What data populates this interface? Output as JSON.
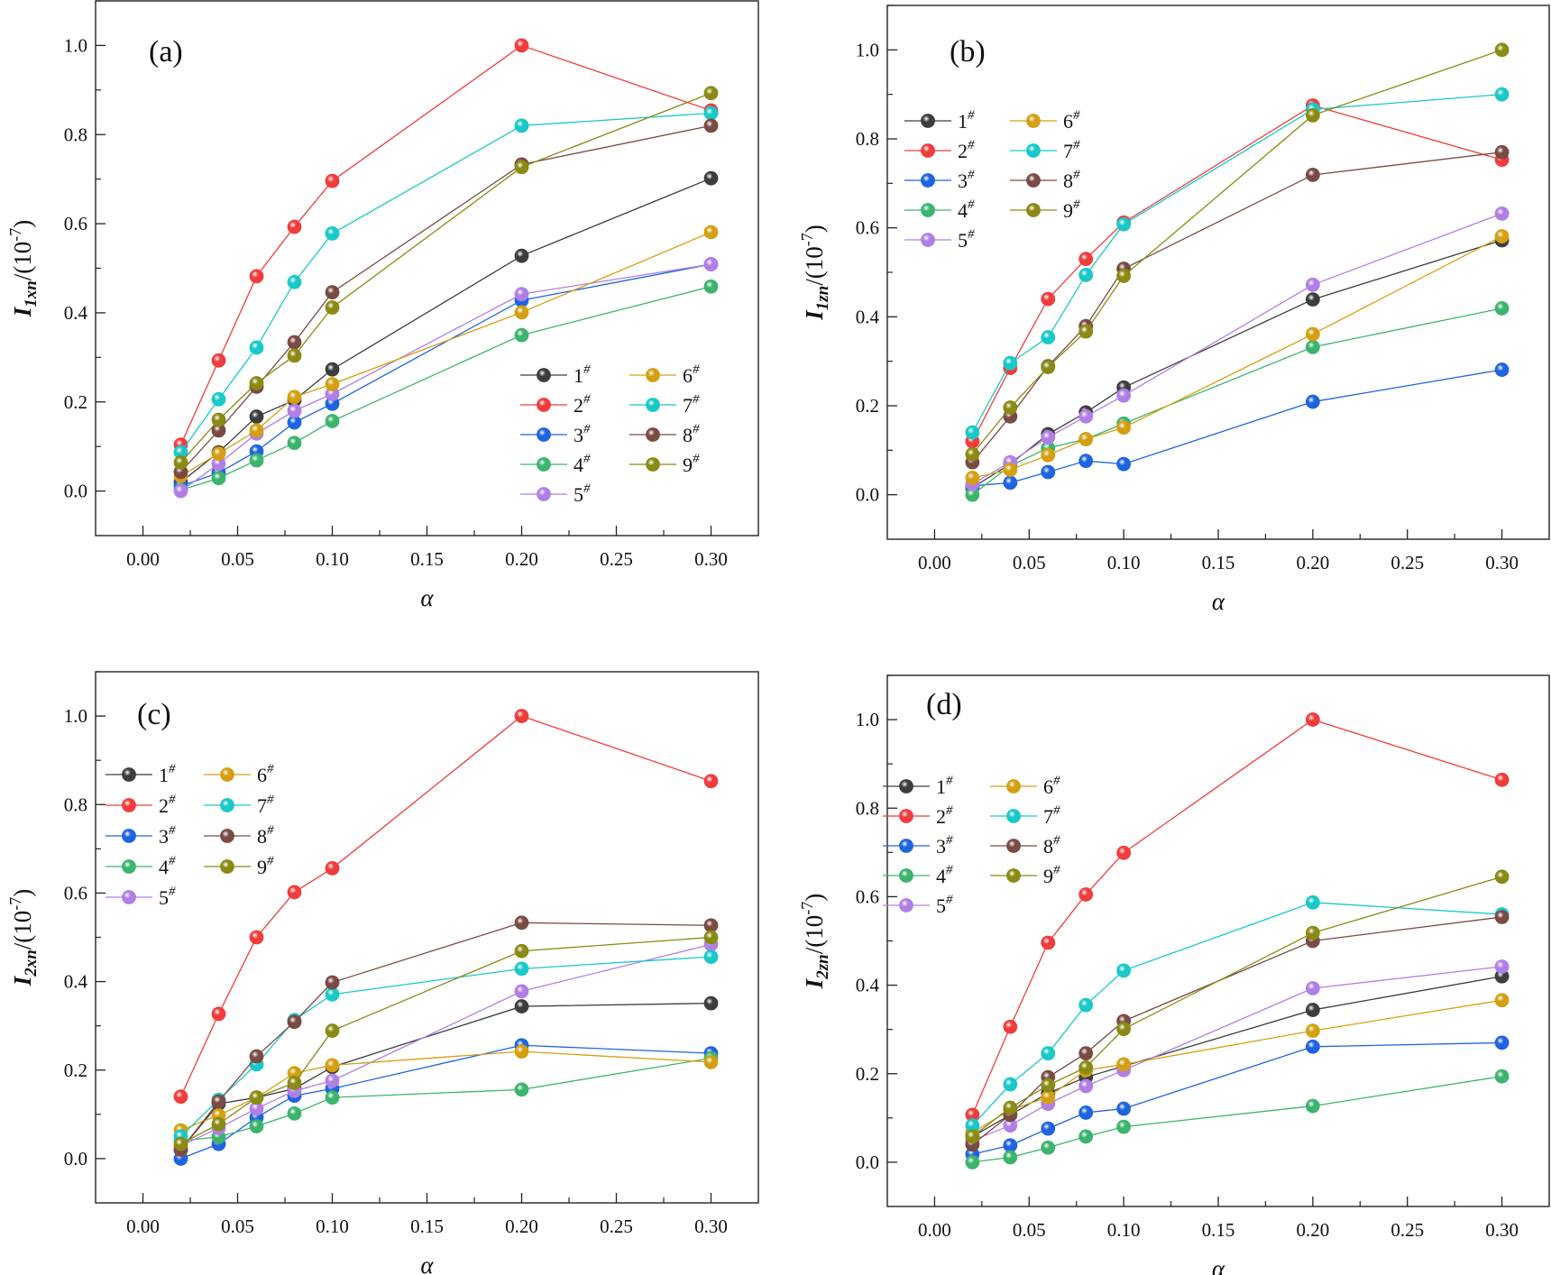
{
  "series_colors": {
    "1": "#3d3d3d",
    "2": "#f03c3c",
    "3": "#1e64e0",
    "4": "#3cb46e",
    "5": "#b07fe6",
    "6": "#d4a012",
    "7": "#19c8c8",
    "8": "#7a4a44",
    "9": "#8a8a14"
  },
  "chart_data": [
    {
      "type": "line",
      "panel_label": "(a)",
      "xlabel": "α",
      "ylabel": {
        "base": "I",
        "sub": "1xn",
        "rest": "/(10",
        "sup": "-7",
        "end": ")"
      },
      "xlim": [
        -0.025,
        0.325
      ],
      "ylim": [
        -0.1,
        1.1
      ],
      "xticks": [
        "0.00",
        "0.05",
        "0.10",
        "0.15",
        "0.20",
        "0.25",
        "0.30"
      ],
      "yticks": [
        "0.0",
        "0.2",
        "0.4",
        "0.6",
        "0.8",
        "1.0"
      ],
      "grid": false,
      "legend_placement": "bottom-right",
      "x": [
        0.02,
        0.04,
        0.06,
        0.08,
        0.1,
        0.2,
        0.3
      ],
      "series": [
        {
          "name": "1",
          "sup": "#",
          "values": [
            0.02,
            0.087,
            0.167,
            0.204,
            0.273,
            0.528,
            0.702
          ]
        },
        {
          "name": "2",
          "sup": "#",
          "values": [
            0.104,
            0.293,
            0.482,
            0.593,
            0.696,
            1.0,
            0.854
          ]
        },
        {
          "name": "3",
          "sup": "#",
          "values": [
            0.011,
            0.041,
            0.089,
            0.154,
            0.196,
            0.428,
            0.509
          ]
        },
        {
          "name": "4",
          "sup": "#",
          "values": [
            0.002,
            0.029,
            0.069,
            0.108,
            0.157,
            0.35,
            0.459
          ]
        },
        {
          "name": "5",
          "sup": "#",
          "values": [
            0.0,
            0.061,
            0.129,
            0.18,
            0.218,
            0.442,
            0.509
          ]
        },
        {
          "name": "6",
          "sup": "#",
          "values": [
            0.034,
            0.084,
            0.136,
            0.211,
            0.24,
            0.401,
            0.581
          ]
        },
        {
          "name": "7",
          "sup": "#",
          "values": [
            0.087,
            0.206,
            0.322,
            0.469,
            0.578,
            0.82,
            0.848
          ]
        },
        {
          "name": "8",
          "sup": "#",
          "values": [
            0.043,
            0.136,
            0.234,
            0.334,
            0.446,
            0.733,
            0.82
          ]
        },
        {
          "name": "9",
          "sup": "#",
          "values": [
            0.064,
            0.16,
            0.242,
            0.304,
            0.412,
            0.727,
            0.893
          ]
        }
      ]
    },
    {
      "type": "line",
      "panel_label": "(b)",
      "xlabel": "α",
      "ylabel": {
        "base": "I",
        "sub": "1zn",
        "rest": "/(10",
        "sup": "-7",
        "end": ")"
      },
      "xlim": [
        -0.025,
        0.325
      ],
      "ylim": [
        -0.1,
        1.1
      ],
      "xticks": [
        "0.00",
        "0.05",
        "0.10",
        "0.15",
        "0.20",
        "0.25",
        "0.30"
      ],
      "yticks": [
        "0.0",
        "0.2",
        "0.4",
        "0.6",
        "0.8",
        "1.0"
      ],
      "grid": false,
      "legend_placement": "top-left",
      "x": [
        0.02,
        0.04,
        0.06,
        0.08,
        0.1,
        0.2,
        0.3
      ],
      "series": [
        {
          "name": "1",
          "sup": "#",
          "values": [
            0.016,
            0.069,
            0.136,
            0.185,
            0.241,
            0.439,
            0.572
          ]
        },
        {
          "name": "2",
          "sup": "#",
          "values": [
            0.12,
            0.285,
            0.44,
            0.53,
            0.612,
            0.875,
            0.753
          ]
        },
        {
          "name": "3",
          "sup": "#",
          "values": [
            0.02,
            0.027,
            0.051,
            0.076,
            0.069,
            0.209,
            0.281
          ]
        },
        {
          "name": "4",
          "sup": "#",
          "values": [
            0.0,
            0.065,
            0.105,
            0.125,
            0.16,
            0.332,
            0.419
          ]
        },
        {
          "name": "5",
          "sup": "#",
          "values": [
            0.024,
            0.073,
            0.129,
            0.176,
            0.223,
            0.472,
            0.632
          ]
        },
        {
          "name": "6",
          "sup": "#",
          "values": [
            0.038,
            0.056,
            0.089,
            0.125,
            0.151,
            0.361,
            0.581
          ]
        },
        {
          "name": "7",
          "sup": "#",
          "values": [
            0.14,
            0.296,
            0.354,
            0.494,
            0.608,
            0.866,
            0.9
          ]
        },
        {
          "name": "8",
          "sup": "#",
          "values": [
            0.073,
            0.176,
            0.289,
            0.379,
            0.508,
            0.719,
            0.77
          ]
        },
        {
          "name": "9",
          "sup": "#",
          "values": [
            0.091,
            0.196,
            0.287,
            0.367,
            0.492,
            0.853,
            1.0
          ]
        }
      ]
    },
    {
      "type": "line",
      "panel_label": "(c)",
      "xlabel": "α",
      "ylabel": {
        "base": "I",
        "sub": "2xn",
        "rest": "/(10",
        "sup": "-7",
        "end": ")"
      },
      "xlim": [
        -0.025,
        0.325
      ],
      "ylim": [
        -0.1,
        1.1
      ],
      "xticks": [
        "0.00",
        "0.05",
        "0.10",
        "0.15",
        "0.20",
        "0.25",
        "0.30"
      ],
      "yticks": [
        "0.0",
        "0.2",
        "0.4",
        "0.6",
        "0.8",
        "1.0"
      ],
      "grid": false,
      "legend_placement": "top-left",
      "x": [
        0.02,
        0.04,
        0.06,
        0.08,
        0.1,
        0.2,
        0.3
      ],
      "series": [
        {
          "name": "1",
          "sup": "#",
          "values": [
            0.02,
            0.124,
            0.138,
            0.158,
            0.207,
            0.344,
            0.351
          ]
        },
        {
          "name": "2",
          "sup": "#",
          "values": [
            0.14,
            0.327,
            0.5,
            0.602,
            0.656,
            1.0,
            0.853
          ]
        },
        {
          "name": "3",
          "sup": "#",
          "values": [
            0.0,
            0.033,
            0.093,
            0.142,
            0.158,
            0.256,
            0.238
          ]
        },
        {
          "name": "4",
          "sup": "#",
          "values": [
            0.04,
            0.049,
            0.073,
            0.102,
            0.138,
            0.156,
            0.227
          ]
        },
        {
          "name": "5",
          "sup": "#",
          "values": [
            0.029,
            0.069,
            0.113,
            0.153,
            0.176,
            0.378,
            0.484
          ]
        },
        {
          "name": "6",
          "sup": "#",
          "values": [
            0.064,
            0.098,
            0.138,
            0.193,
            0.211,
            0.242,
            0.218
          ]
        },
        {
          "name": "7",
          "sup": "#",
          "values": [
            0.05,
            0.133,
            0.213,
            0.313,
            0.371,
            0.429,
            0.456
          ]
        },
        {
          "name": "8",
          "sup": "#",
          "values": [
            0.02,
            0.129,
            0.231,
            0.309,
            0.398,
            0.533,
            0.527
          ]
        },
        {
          "name": "9",
          "sup": "#",
          "values": [
            0.033,
            0.078,
            0.138,
            0.171,
            0.289,
            0.469,
            0.5
          ]
        }
      ]
    },
    {
      "type": "line",
      "panel_label": "(d)",
      "xlabel": "α",
      "ylabel": {
        "base": "I",
        "sub": "2zn",
        "rest": "/(10",
        "sup": "-7",
        "end": ")"
      },
      "xlim": [
        -0.025,
        0.325
      ],
      "ylim": [
        -0.1,
        1.1
      ],
      "xticks": [
        "0.00",
        "0.05",
        "0.10",
        "0.15",
        "0.20",
        "0.25",
        "0.30"
      ],
      "yticks": [
        "0.0",
        "0.2",
        "0.4",
        "0.6",
        "0.8",
        "1.0"
      ],
      "grid": false,
      "legend_placement": "top-left",
      "x": [
        0.02,
        0.04,
        0.06,
        0.08,
        0.1,
        0.2,
        0.3
      ],
      "series": [
        {
          "name": "1",
          "sup": "#",
          "values": [
            0.058,
            0.107,
            0.156,
            0.192,
            0.217,
            0.344,
            0.42
          ]
        },
        {
          "name": "2",
          "sup": "#",
          "values": [
            0.107,
            0.306,
            0.496,
            0.605,
            0.699,
            1.0,
            0.864
          ]
        },
        {
          "name": "3",
          "sup": "#",
          "values": [
            0.018,
            0.038,
            0.076,
            0.112,
            0.121,
            0.261,
            0.27
          ]
        },
        {
          "name": "4",
          "sup": "#",
          "values": [
            0.0,
            0.011,
            0.033,
            0.058,
            0.08,
            0.127,
            0.194
          ]
        },
        {
          "name": "5",
          "sup": "#",
          "values": [
            0.049,
            0.083,
            0.132,
            0.172,
            0.208,
            0.393,
            0.442
          ]
        },
        {
          "name": "6",
          "sup": "#",
          "values": [
            0.067,
            0.118,
            0.147,
            0.208,
            0.221,
            0.297,
            0.366
          ]
        },
        {
          "name": "7",
          "sup": "#",
          "values": [
            0.083,
            0.176,
            0.246,
            0.355,
            0.433,
            0.587,
            0.56
          ]
        },
        {
          "name": "8",
          "sup": "#",
          "values": [
            0.04,
            0.107,
            0.192,
            0.246,
            0.319,
            0.5,
            0.554
          ]
        },
        {
          "name": "9",
          "sup": "#",
          "values": [
            0.058,
            0.123,
            0.174,
            0.214,
            0.301,
            0.518,
            0.645
          ]
        }
      ]
    }
  ]
}
